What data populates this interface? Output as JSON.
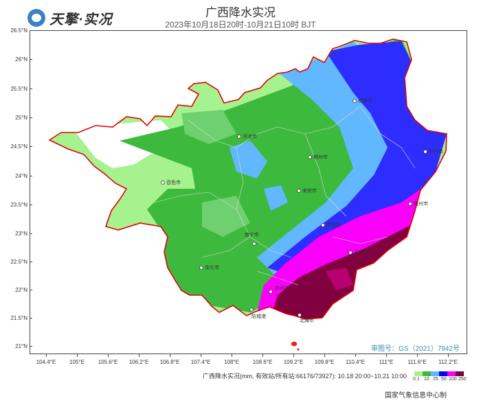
{
  "header": {
    "logo_text": "天擎·实况",
    "title": "广西降水实况",
    "subtitle": "2023年10月18日20时-10月21日10时 BJT"
  },
  "axes": {
    "latitude_ticks": [
      "26.5°N",
      "26°N",
      "25.5°N",
      "25°N",
      "24.5°N",
      "24°N",
      "23.5°N",
      "23°N",
      "22.5°N",
      "22°N",
      "21.5°N",
      "21°N"
    ],
    "longitude_ticks": [
      "104.4°E",
      "105°E",
      "105.6°E",
      "106.2°E",
      "106.8°E",
      "107.4°E",
      "108°E",
      "108.6°E",
      "109.2°E",
      "109.8°E",
      "110.4°E",
      "111°E",
      "111.6°E",
      "112.2°E"
    ]
  },
  "cities": [
    "桂林市",
    "河池市",
    "贺州市",
    "柳州市",
    "来宾市",
    "百色市",
    "梧州市",
    "贵港市",
    "南宁市",
    "玉林市",
    "崇左市",
    "钦州市",
    "防城港",
    "北海市"
  ],
  "approval_number": "审图号：GS（2021）7942号",
  "legend": {
    "title": "广西降水实况(mm, 有效站/所有站:66176/73927): 10.18 20:00~10.21 10:00",
    "labels": [
      "0.1",
      "10",
      "25",
      "50",
      "100",
      "250"
    ],
    "colors": [
      "#a6f28f",
      "#3dba3d",
      "#61b8ff",
      "#0000ff",
      "#fa00fa",
      "#800040"
    ]
  },
  "producer": "国家气象信息中心制"
}
